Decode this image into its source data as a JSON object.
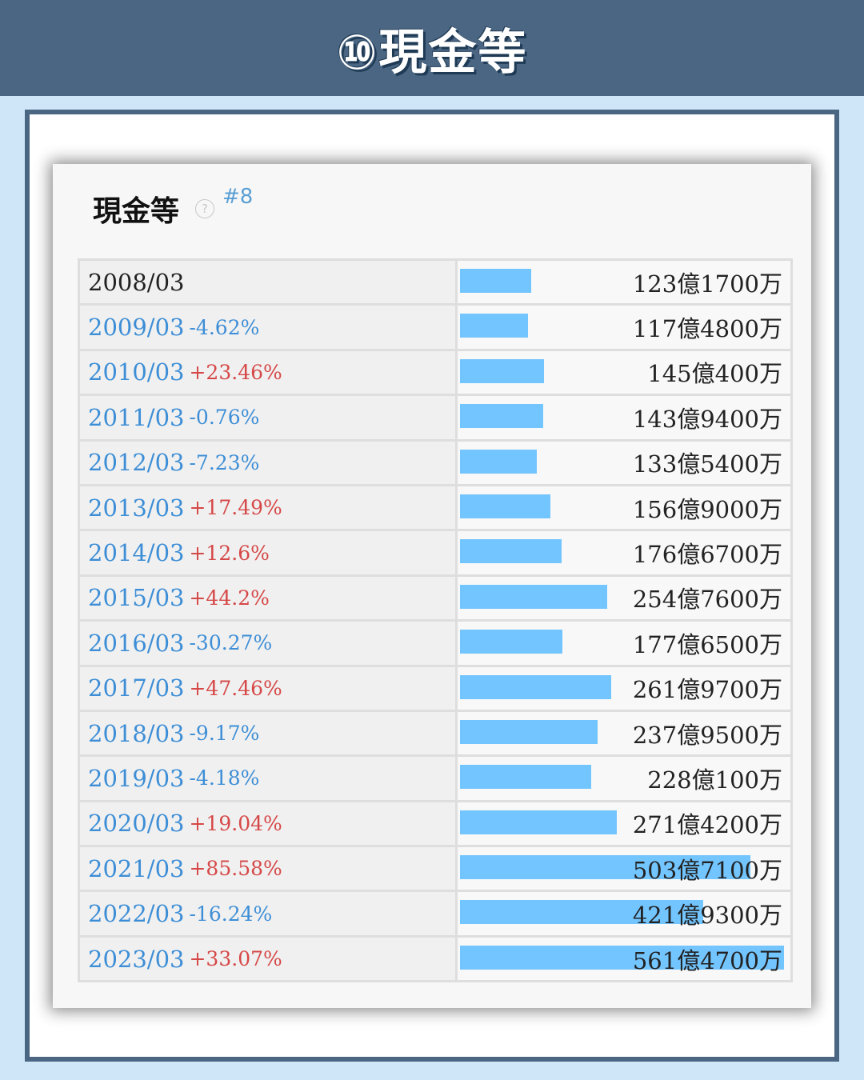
{
  "banner": {
    "title": "⑩現金等"
  },
  "card": {
    "title": "現金等",
    "help_icon": "?",
    "rank": "#8"
  },
  "colors": {
    "banner": "#4a6682",
    "bar": "#73c5ff",
    "positive": "#d64848",
    "negative": "#3d8ed6"
  },
  "chart_data": {
    "type": "bar",
    "orientation": "horizontal",
    "title": "現金等",
    "unit": "億円",
    "categories": [
      "2008/03",
      "2009/03",
      "2010/03",
      "2011/03",
      "2012/03",
      "2013/03",
      "2014/03",
      "2015/03",
      "2016/03",
      "2017/03",
      "2018/03",
      "2019/03",
      "2020/03",
      "2021/03",
      "2022/03",
      "2023/03"
    ],
    "values": [
      123.17,
      117.48,
      145.04,
      143.94,
      133.54,
      156.9,
      176.67,
      254.76,
      177.65,
      261.97,
      237.95,
      228.01,
      271.42,
      503.71,
      421.93,
      561.47
    ],
    "value_labels": [
      "123億1700万",
      "117億4800万",
      "145億400万",
      "143億9400万",
      "133億5400万",
      "156億9000万",
      "176億6700万",
      "254億7600万",
      "177億6500万",
      "261億9700万",
      "237億9500万",
      "228億100万",
      "271億4200万",
      "503億7100万",
      "421億9300万",
      "561億4700万"
    ],
    "changes": [
      "",
      "-4.62%",
      "+23.46%",
      "-0.76%",
      "-7.23%",
      "+17.49%",
      "+12.6%",
      "+44.2%",
      "-30.27%",
      "+47.46%",
      "-9.17%",
      "-4.18%",
      "+19.04%",
      "+85.58%",
      "-16.24%",
      "+33.07%"
    ],
    "xlim": [
      0,
      561.47
    ]
  }
}
